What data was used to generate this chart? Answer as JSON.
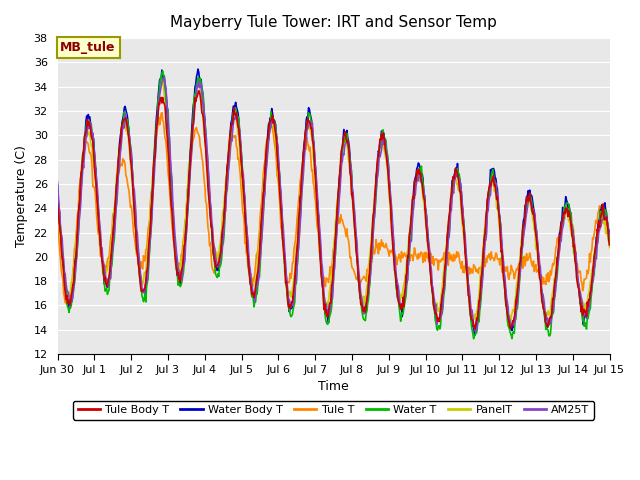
{
  "title": "Mayberry Tule Tower: IRT and Sensor Temp",
  "xlabel": "Time",
  "ylabel": "Temperature (C)",
  "ylim": [
    12,
    38
  ],
  "yticks": [
    12,
    14,
    16,
    18,
    20,
    22,
    24,
    26,
    28,
    30,
    32,
    34,
    36,
    38
  ],
  "annotation": "MB_tule",
  "bg_color": "#e8e8e8",
  "fig_bg": "#ffffff",
  "legend": [
    {
      "label": "Tule Body T",
      "color": "#cc0000"
    },
    {
      "label": "Water Body T",
      "color": "#0000cc"
    },
    {
      "label": "Tule T",
      "color": "#ff8800"
    },
    {
      "label": "Water T",
      "color": "#00bb00"
    },
    {
      "label": "PanelT",
      "color": "#cccc00"
    },
    {
      "label": "AM25T",
      "color": "#8844cc"
    }
  ],
  "xtick_labels": [
    "Jun 30",
    "Jul 1",
    "Jul 2",
    "Jul 3",
    "Jul 4",
    "Jul 5",
    "Jul 6",
    "Jul 7",
    "Jul 8",
    "Jul 9",
    "Jul 10",
    "Jul 11",
    "Jul 12",
    "Jul 13",
    "Jul 14",
    "Jul 15"
  ],
  "n_days": 15,
  "pts_per_day": 48
}
